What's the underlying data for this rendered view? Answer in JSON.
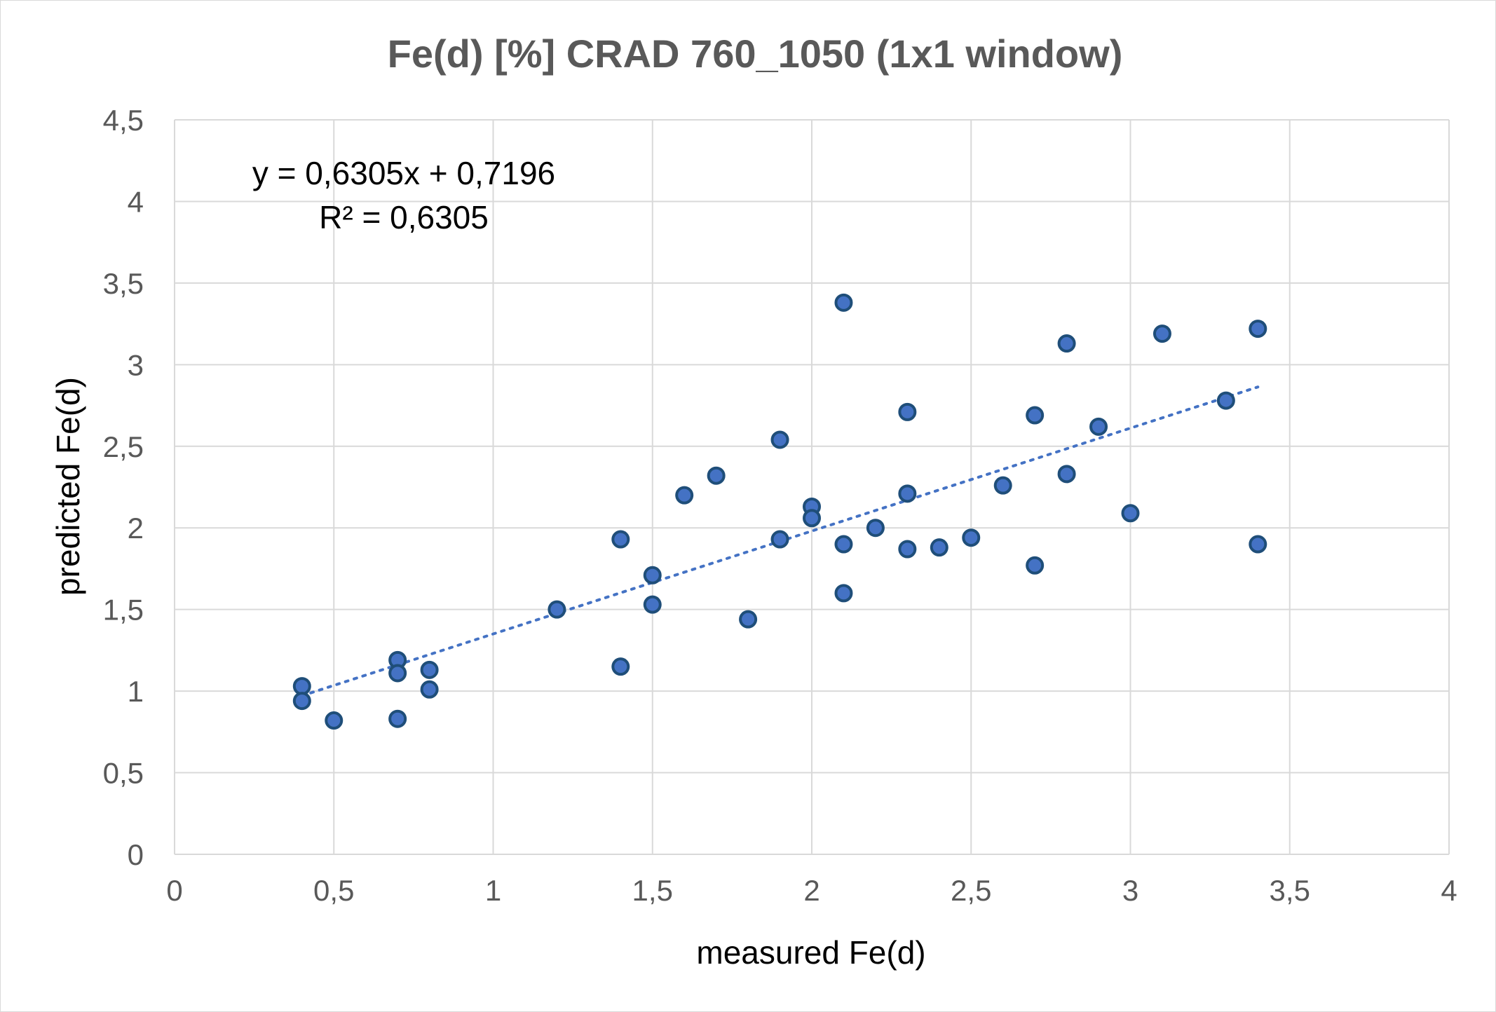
{
  "chart_data": {
    "type": "scatter",
    "title": "Fe(d) [%] CRAD 760_1050 (1x1 window)",
    "xlabel": "measured Fe(d)",
    "ylabel": "predicted Fe(d)",
    "xlim": [
      0,
      4
    ],
    "ylim": [
      0,
      4.5
    ],
    "x_ticks": [
      "0",
      "0,5",
      "1",
      "1,5",
      "2",
      "2,5",
      "3",
      "3,5",
      "4"
    ],
    "y_ticks": [
      "0",
      "0,5",
      "1",
      "1,5",
      "2",
      "2,5",
      "3",
      "3,5",
      "4",
      "4,5"
    ],
    "grid": true,
    "legend": "none",
    "series": [
      {
        "color": "#4472c4",
        "points": [
          {
            "x": 0.4,
            "y": 1.03
          },
          {
            "x": 0.4,
            "y": 0.94
          },
          {
            "x": 0.5,
            "y": 0.82
          },
          {
            "x": 0.7,
            "y": 1.19
          },
          {
            "x": 0.7,
            "y": 1.11
          },
          {
            "x": 0.7,
            "y": 0.83
          },
          {
            "x": 0.8,
            "y": 1.13
          },
          {
            "x": 0.8,
            "y": 1.01
          },
          {
            "x": 1.2,
            "y": 1.5
          },
          {
            "x": 1.4,
            "y": 1.93
          },
          {
            "x": 1.4,
            "y": 1.15
          },
          {
            "x": 1.5,
            "y": 1.71
          },
          {
            "x": 1.5,
            "y": 1.53
          },
          {
            "x": 1.6,
            "y": 2.2
          },
          {
            "x": 1.7,
            "y": 2.32
          },
          {
            "x": 1.8,
            "y": 1.44
          },
          {
            "x": 1.9,
            "y": 2.54
          },
          {
            "x": 1.9,
            "y": 1.93
          },
          {
            "x": 2.0,
            "y": 2.13
          },
          {
            "x": 2.0,
            "y": 2.06
          },
          {
            "x": 2.1,
            "y": 3.38
          },
          {
            "x": 2.1,
            "y": 1.9
          },
          {
            "x": 2.1,
            "y": 1.6
          },
          {
            "x": 2.2,
            "y": 2.0
          },
          {
            "x": 2.3,
            "y": 2.71
          },
          {
            "x": 2.3,
            "y": 2.21
          },
          {
            "x": 2.3,
            "y": 1.87
          },
          {
            "x": 2.4,
            "y": 1.88
          },
          {
            "x": 2.5,
            "y": 1.94
          },
          {
            "x": 2.6,
            "y": 2.26
          },
          {
            "x": 2.7,
            "y": 2.69
          },
          {
            "x": 2.7,
            "y": 1.77
          },
          {
            "x": 2.8,
            "y": 3.13
          },
          {
            "x": 2.8,
            "y": 2.33
          },
          {
            "x": 2.9,
            "y": 2.62
          },
          {
            "x": 3.0,
            "y": 2.09
          },
          {
            "x": 3.1,
            "y": 3.19
          },
          {
            "x": 3.3,
            "y": 2.78
          },
          {
            "x": 3.4,
            "y": 3.22
          },
          {
            "x": 3.4,
            "y": 1.9
          }
        ]
      }
    ],
    "trendline": {
      "type": "linear",
      "slope": 0.6305,
      "intercept": 0.7196,
      "x_range": [
        0.4,
        3.4
      ],
      "color": "#4472c4",
      "equation_text": "y = 0,6305x + 0,7196",
      "r2_text": "R² = 0,6305"
    }
  }
}
